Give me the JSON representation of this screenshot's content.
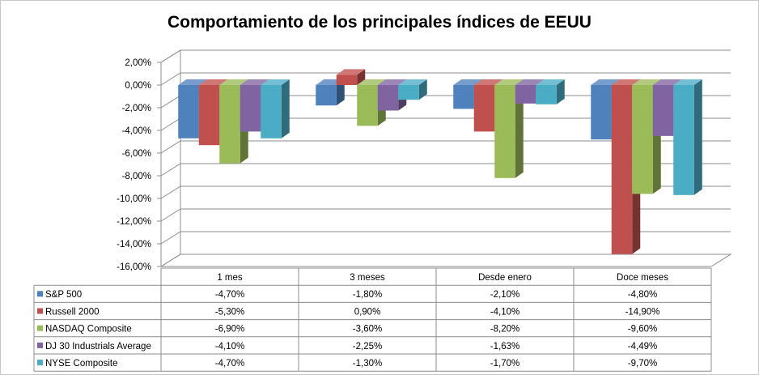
{
  "chart_data": {
    "type": "bar",
    "title": "Comportamiento de los principales índices de EEUU",
    "categories": [
      "1 mes",
      "3 meses",
      "Desde enero",
      "Doce meses"
    ],
    "ylim": [
      -16,
      2
    ],
    "yticks": [
      "2,00%",
      "0,00%",
      "-2,00%",
      "-4,00%",
      "-6,00%",
      "-8,00%",
      "-10,00%",
      "-12,00%",
      "-14,00%",
      "-16,00%"
    ],
    "series": [
      {
        "name": "S&P 500",
        "values": [
          -4.7,
          -1.8,
          -2.1,
          -4.8
        ],
        "labels": [
          "-4,70%",
          "-1,80%",
          "-2,10%",
          "-4,80%"
        ],
        "color": "#4F81BD"
      },
      {
        "name": "Russell 2000",
        "values": [
          -5.3,
          0.9,
          -4.1,
          -14.9
        ],
        "labels": [
          "-5,30%",
          "0,90%",
          "-4,10%",
          "-14,90%"
        ],
        "color": "#C0504D"
      },
      {
        "name": "NASDAQ Composite",
        "values": [
          -6.9,
          -3.6,
          -8.2,
          -9.6
        ],
        "labels": [
          "-6,90%",
          "-3,60%",
          "-8,20%",
          "-9,60%"
        ],
        "color": "#9BBB59"
      },
      {
        "name": "DJ 30 Industrials Average",
        "values": [
          -4.1,
          -2.25,
          -1.63,
          -4.49
        ],
        "labels": [
          "-4,10%",
          "-2,25%",
          "-1,63%",
          "-4,49%"
        ],
        "color": "#8064A2"
      },
      {
        "name": "NYSE Composite",
        "values": [
          -4.7,
          -1.3,
          -1.7,
          -9.7
        ],
        "labels": [
          "-4,70%",
          "-1,30%",
          "-1,70%",
          "-9,70%"
        ],
        "color": "#4BACC6"
      }
    ]
  }
}
